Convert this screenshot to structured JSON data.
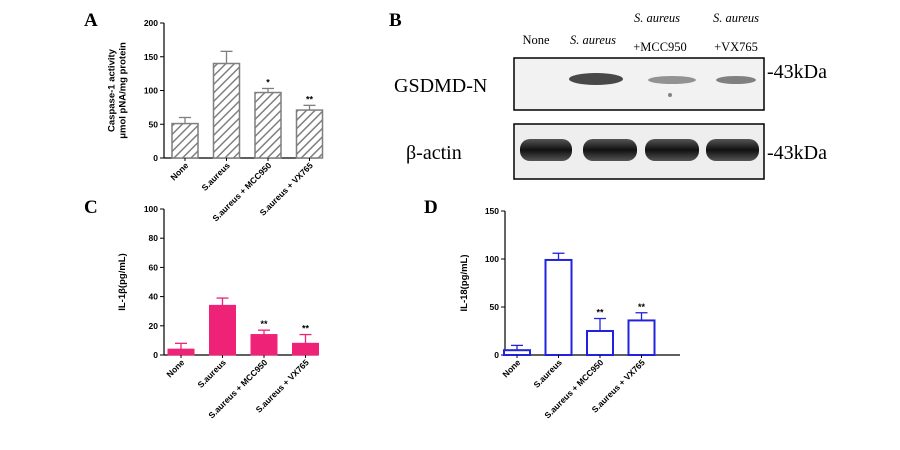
{
  "panels": {
    "A": {
      "letter": "A"
    },
    "B": {
      "letter": "B",
      "lanes": [
        {
          "line1": "",
          "line2": "None",
          "italic": false
        },
        {
          "line1": "",
          "line2": "S. aureus",
          "italic": true
        },
        {
          "line1": "S. aureus",
          "line2": "+MCC950",
          "italic": true
        },
        {
          "line1": "S. aureus",
          "line2": "+VX765",
          "italic": true
        }
      ],
      "rows": [
        {
          "label": "GSDMD-N",
          "marker": "-43kDa"
        },
        {
          "label": "β-actin",
          "marker": "-43kDa"
        }
      ]
    },
    "C": {
      "letter": "C"
    },
    "D": {
      "letter": "D"
    }
  },
  "chart_data": [
    {
      "panel": "A",
      "type": "bar",
      "ylabel_lines": [
        "Caspase-1 activity",
        "μmol pNA/mg protein"
      ],
      "categories": [
        "None",
        "S.aureus",
        "S.aureus + MCC950",
        "S.aureus + VX765"
      ],
      "values": [
        51,
        140,
        97,
        71
      ],
      "errors": [
        9,
        18,
        6,
        7
      ],
      "significance": [
        "",
        "",
        "*",
        "**"
      ],
      "ylim": [
        0,
        200
      ],
      "yticks": [
        0,
        50,
        100,
        150,
        200
      ],
      "fill": "hatched",
      "color": "#7f7f7f"
    },
    {
      "panel": "C",
      "type": "bar",
      "ylabel_lines": [
        "IL-1β(pg/mL)"
      ],
      "categories": [
        "None",
        "S.aureus",
        "S.aureus + MCC950",
        "S.aureus + VX765"
      ],
      "values": [
        4,
        34,
        14,
        8
      ],
      "errors": [
        4,
        5,
        3,
        6
      ],
      "significance": [
        "",
        "",
        "**",
        "**"
      ],
      "ylim": [
        0,
        100
      ],
      "yticks": [
        0,
        20,
        40,
        60,
        80,
        100
      ],
      "fill": "solid",
      "color": "#ee2277"
    },
    {
      "panel": "D",
      "type": "bar",
      "ylabel_lines": [
        "IL-18(pg/mL)"
      ],
      "categories": [
        "None",
        "S.aureus",
        "S.aureus + MCC950",
        "S.aureus + VX765"
      ],
      "values": [
        5,
        99,
        25,
        36
      ],
      "errors": [
        5,
        7,
        13,
        8
      ],
      "significance": [
        "",
        "",
        "**",
        "**"
      ],
      "ylim": [
        0,
        150
      ],
      "yticks": [
        0,
        50,
        100,
        150
      ],
      "fill": "outline",
      "color": "#2222dd"
    }
  ]
}
